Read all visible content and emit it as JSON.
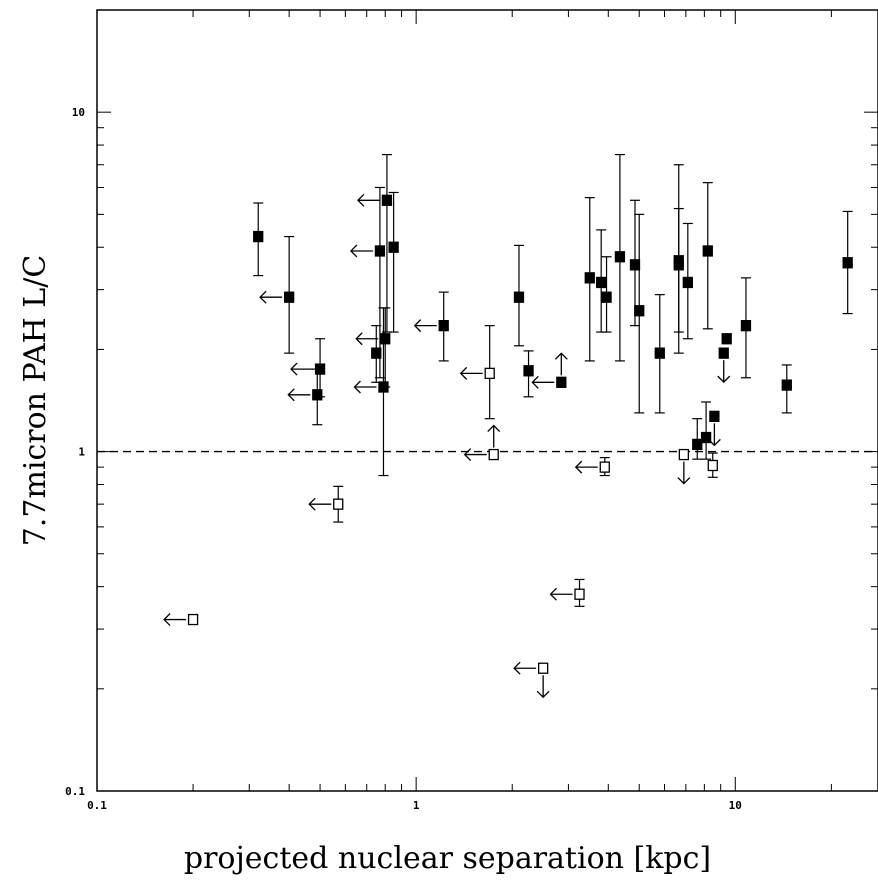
{
  "chart_data": {
    "type": "scatter",
    "xlabel": "projected nuclear separation [kpc]",
    "ylabel": "7.7micron PAH L/C",
    "x_scale": "log",
    "y_scale": "log",
    "xlim": [
      0.1,
      28
    ],
    "ylim": [
      0.1,
      20
    ],
    "x_tick_labels": [
      "0.1",
      "1",
      "10"
    ],
    "y_tick_labels": [
      "0.1",
      "1",
      "10"
    ],
    "reference_line": {
      "y": 1.0,
      "style": "dashed"
    },
    "series": [
      {
        "marker": "filled-square",
        "points": [
          {
            "x": 0.32,
            "y": 4.3,
            "lo": 3.3,
            "hi": 5.4
          },
          {
            "x": 0.4,
            "y": 2.85,
            "lo": 1.95,
            "hi": 4.3,
            "arrow": "left"
          },
          {
            "x": 0.5,
            "y": 1.75,
            "lo": 1.45,
            "hi": 2.15,
            "arrow": "left"
          },
          {
            "x": 0.49,
            "y": 1.47,
            "lo": 1.2,
            "hi": 1.75,
            "arrow": "left"
          },
          {
            "x": 0.75,
            "y": 1.95,
            "lo": 1.6,
            "hi": 2.35
          },
          {
            "x": 0.77,
            "y": 3.9,
            "lo": 1.65,
            "hi": 6.0,
            "arrow": "left"
          },
          {
            "x": 0.79,
            "y": 1.55,
            "lo": 0.85,
            "hi": 2.65,
            "arrow": "left"
          },
          {
            "x": 0.81,
            "y": 5.5,
            "lo": 2.25,
            "hi": 7.5,
            "arrow": "left"
          },
          {
            "x": 0.8,
            "y": 2.15,
            "lo": 1.55,
            "hi": 2.65,
            "arrow": "left"
          },
          {
            "x": 0.85,
            "y": 4.0,
            "lo": 2.25,
            "hi": 5.8
          },
          {
            "x": 1.22,
            "y": 2.35,
            "lo": 1.85,
            "hi": 2.95,
            "arrow": "left"
          },
          {
            "x": 2.1,
            "y": 2.85,
            "lo": 2.05,
            "hi": 4.05
          },
          {
            "x": 2.25,
            "y": 1.73,
            "lo": 1.45,
            "hi": 1.98
          },
          {
            "x": 2.85,
            "y": 1.6,
            "arrow": "left-up"
          },
          {
            "x": 3.5,
            "y": 3.25,
            "lo": 1.85,
            "hi": 5.6
          },
          {
            "x": 3.8,
            "y": 3.15,
            "lo": 2.25,
            "hi": 4.5
          },
          {
            "x": 3.95,
            "y": 2.85,
            "lo": 2.25,
            "hi": 3.75
          },
          {
            "x": 4.35,
            "y": 3.75,
            "lo": 1.85,
            "hi": 7.5
          },
          {
            "x": 4.85,
            "y": 3.55,
            "lo": 2.35,
            "hi": 5.5
          },
          {
            "x": 5.0,
            "y": 2.6,
            "lo": 1.3,
            "hi": 5.0
          },
          {
            "x": 5.8,
            "y": 1.95,
            "lo": 1.3,
            "hi": 2.9
          },
          {
            "x": 6.65,
            "y": 3.65,
            "lo": 2.25,
            "hi": 7.0
          },
          {
            "x": 6.65,
            "y": 3.55,
            "lo": 1.95,
            "hi": 5.2
          },
          {
            "x": 7.1,
            "y": 3.15,
            "lo": 2.15,
            "hi": 4.7
          },
          {
            "x": 7.6,
            "y": 1.05,
            "lo": 0.95,
            "hi": 1.25
          },
          {
            "x": 8.2,
            "y": 3.9,
            "lo": 2.3,
            "hi": 6.2
          },
          {
            "x": 8.1,
            "y": 1.1,
            "lo": 0.95,
            "hi": 1.4
          },
          {
            "x": 8.6,
            "y": 1.27,
            "arrow": "down"
          },
          {
            "x": 9.2,
            "y": 1.95,
            "arrow": "down"
          },
          {
            "x": 9.4,
            "y": 2.15
          },
          {
            "x": 10.8,
            "y": 2.35,
            "lo": 1.65,
            "hi": 3.25
          },
          {
            "x": 14.5,
            "y": 1.57,
            "lo": 1.3,
            "hi": 1.8
          },
          {
            "x": 22.5,
            "y": 3.6,
            "lo": 2.55,
            "hi": 5.1
          }
        ]
      },
      {
        "marker": "open-square",
        "points": [
          {
            "x": 0.2,
            "y": 0.32,
            "arrow": "left"
          },
          {
            "x": 0.57,
            "y": 0.7,
            "lo": 0.62,
            "hi": 0.79,
            "arrow": "left"
          },
          {
            "x": 1.7,
            "y": 1.7,
            "lo": 1.25,
            "hi": 2.35,
            "arrow": "left"
          },
          {
            "x": 1.75,
            "y": 0.98,
            "arrow": "left-up"
          },
          {
            "x": 2.5,
            "y": 0.23,
            "arrow": "left-down"
          },
          {
            "x": 3.25,
            "y": 0.38,
            "lo": 0.35,
            "hi": 0.42,
            "arrow": "left"
          },
          {
            "x": 3.9,
            "y": 0.9,
            "lo": 0.85,
            "hi": 0.96,
            "arrow": "left"
          },
          {
            "x": 6.9,
            "y": 0.98,
            "arrow": "down"
          },
          {
            "x": 8.5,
            "y": 0.91,
            "lo": 0.84,
            "hi": 0.99
          }
        ]
      }
    ]
  }
}
